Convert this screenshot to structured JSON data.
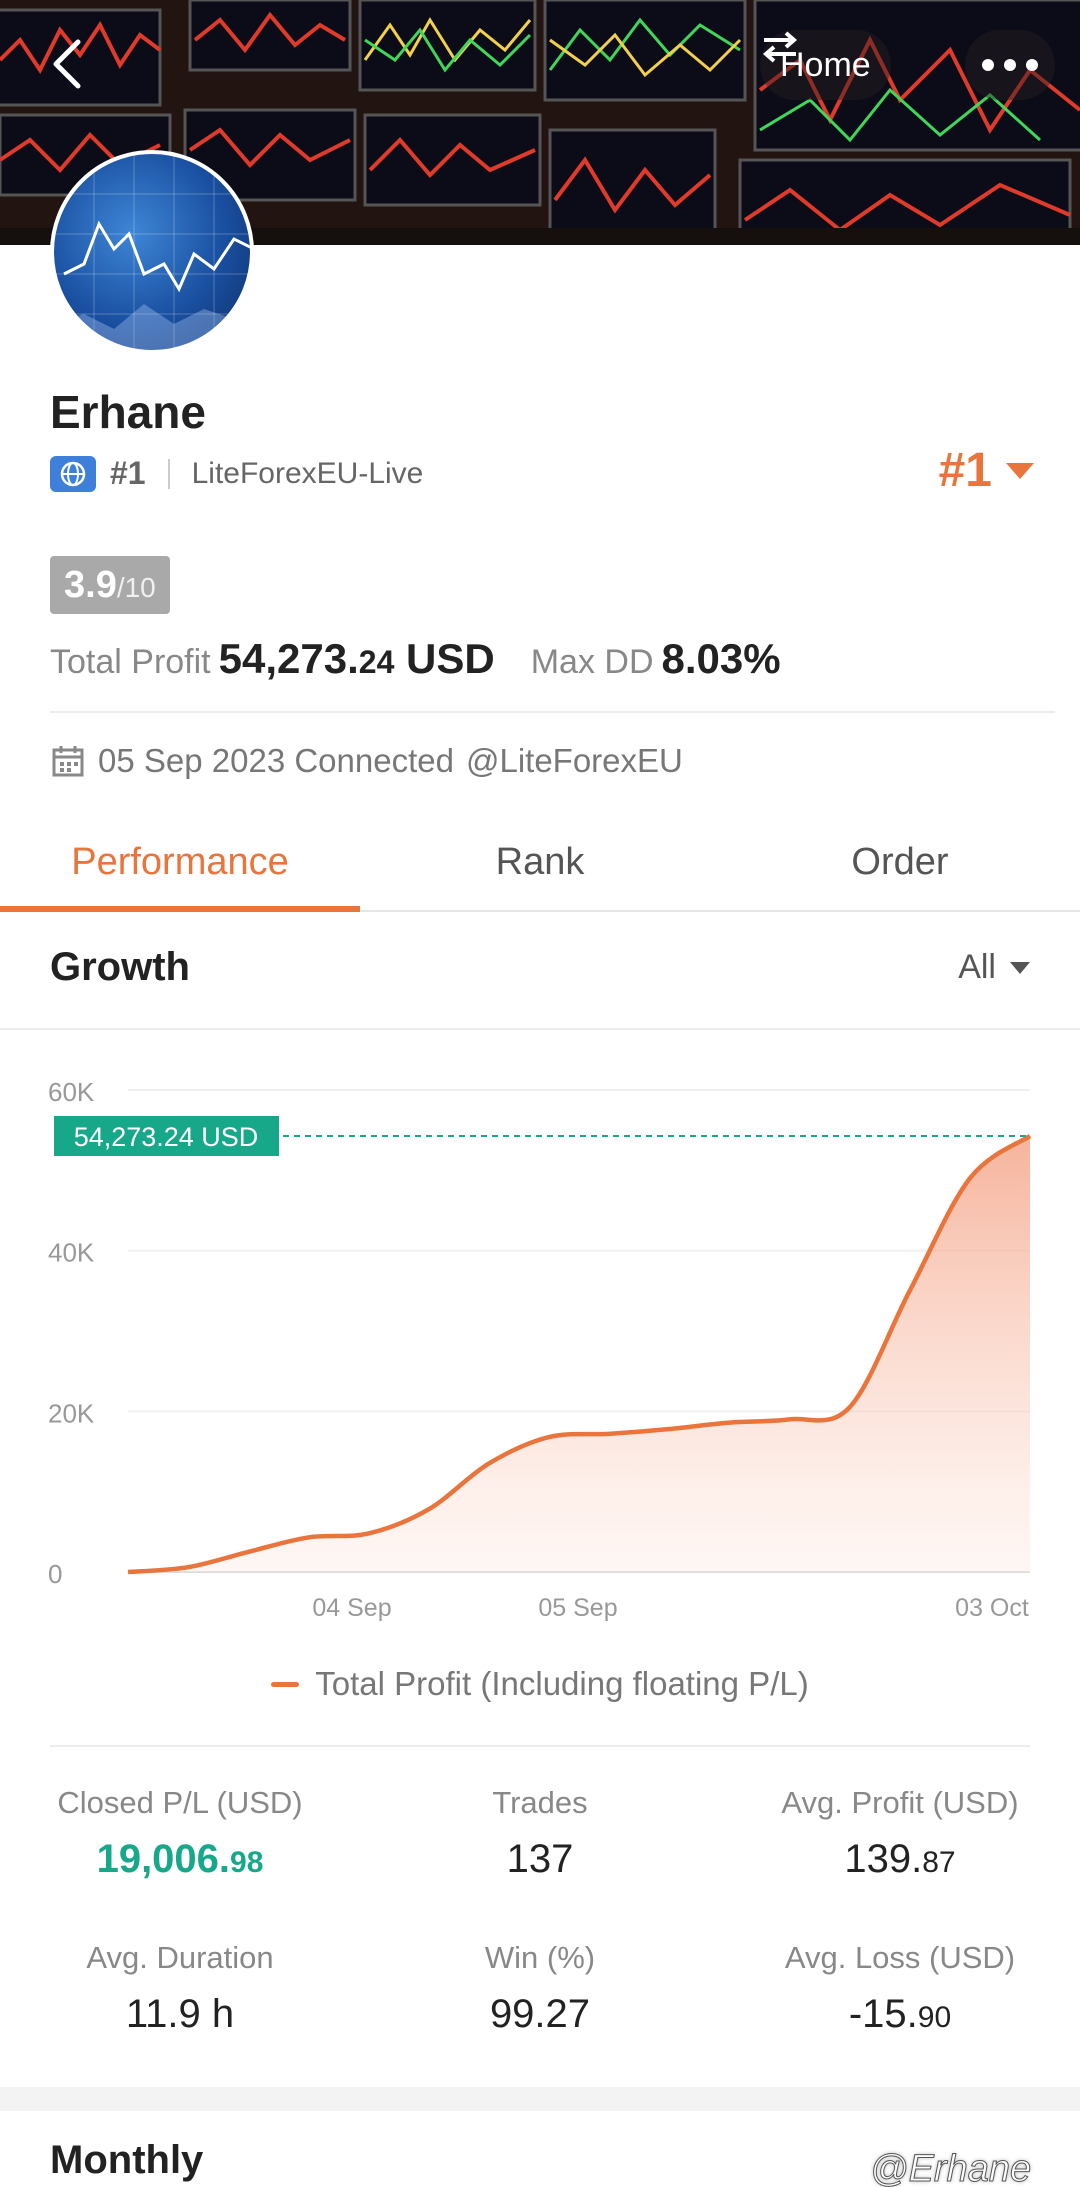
{
  "header": {
    "home_label": "Home",
    "back_icon": "back-icon",
    "swap_icon": "swap-icon",
    "more_icon": "more-icon"
  },
  "profile": {
    "name": "Erhane",
    "rank_label": "#1",
    "broker": "LiteForexEU-Live",
    "rank_big": "#1",
    "score_value": "3.9",
    "score_max": "/10",
    "total_profit_label": "Total Profit",
    "total_profit_int": "54,273.",
    "total_profit_dec": "24",
    "total_profit_unit": "USD",
    "max_dd_label": "Max DD",
    "max_dd_value": "8.03%",
    "connected_text": "05 Sep 2023 Connected",
    "connected_handle": "@LiteForexEU"
  },
  "tabs": [
    "Performance",
    "Rank",
    "Order"
  ],
  "growth": {
    "title": "Growth",
    "filter": "All",
    "legend": "Total Profit (Including floating P/L)"
  },
  "chart_data": {
    "type": "area",
    "title": "",
    "xlabel": "",
    "ylabel": "",
    "ylim": [
      0,
      60000
    ],
    "y_ticks": [
      "60K",
      "40K",
      "20K",
      "0"
    ],
    "x_ticks": [
      "04 Sep",
      "05 Sep",
      "03 Oct"
    ],
    "current_value_label": "54,273.24 USD",
    "current_value": 54273.24,
    "series": [
      {
        "name": "Total Profit (Including floating P/L)",
        "color": "#e9743c",
        "values": [
          0,
          600,
          2500,
          4300,
          4800,
          7800,
          13500,
          16800,
          17200,
          17800,
          18600,
          19000,
          20500,
          35000,
          49000,
          54273.24
        ]
      }
    ]
  },
  "stats": [
    {
      "label": "Closed P/L (USD)",
      "int": "19,006.",
      "dec": "98"
    },
    {
      "label": "Trades",
      "int": "137",
      "dec": ""
    },
    {
      "label": "Avg. Profit (USD)",
      "int": "139.",
      "dec": "87"
    },
    {
      "label": "Avg. Duration",
      "int": "11.9 h",
      "dec": ""
    },
    {
      "label": "Win (%)",
      "int": "99.27",
      "dec": ""
    },
    {
      "label": "Avg. Loss (USD)",
      "int": "-15.",
      "dec": "90"
    }
  ],
  "monthly_title": "Monthly",
  "watermark": "@Erhane",
  "colors": {
    "accent": "#e9743c",
    "teal": "#17a88a",
    "globe": "#3d7fd9"
  }
}
